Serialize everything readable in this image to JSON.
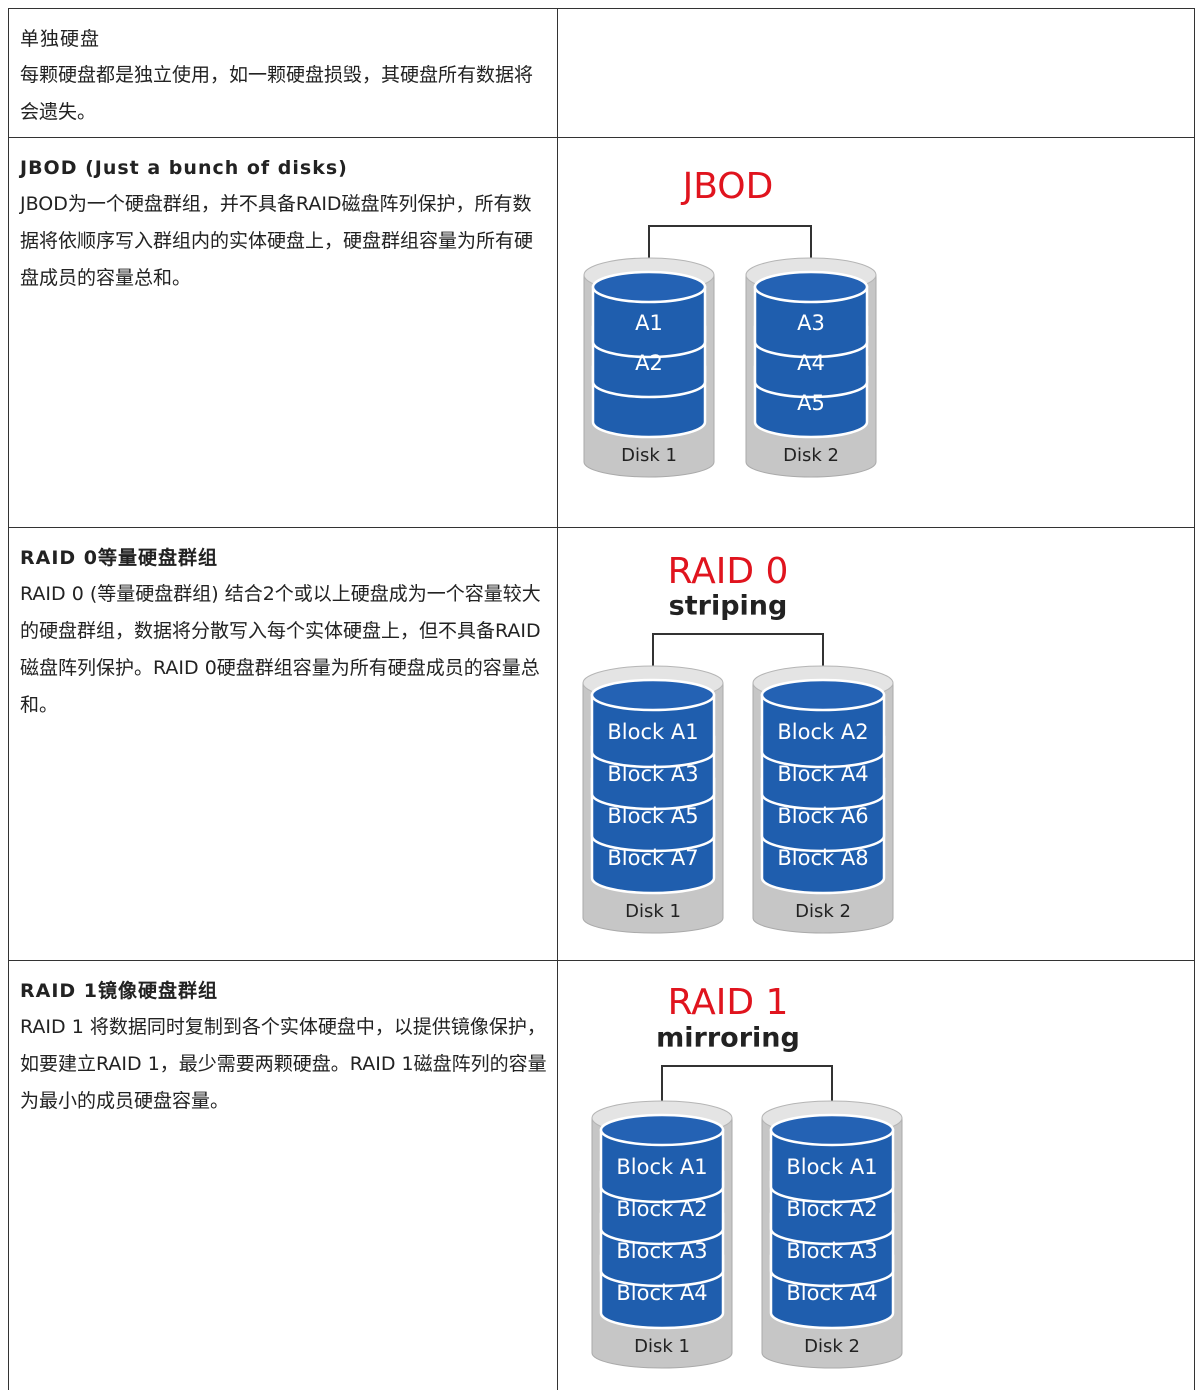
{
  "rows": [
    {
      "title": "单独硬盘",
      "description": "每颗硬盘都是独立使用，如一颗硬盘损毁，其硬盘所有数据将会遗失。"
    },
    {
      "title": "JBOD (Just a bunch of disks)",
      "description": "JBOD为一个硬盘群组，并不具备RAID磁盘阵列保护，所有数据将依顺序写入群组内的实体硬盘上，硬盘群组容量为所有硬盘成员的容量总和。",
      "diagram": {
        "title": "JBOD",
        "disks": [
          {
            "label": "Disk 1",
            "blocks": [
              "A1",
              "A2"
            ]
          },
          {
            "label": "Disk 2",
            "blocks": [
              "A3",
              "A4",
              "A5"
            ]
          }
        ]
      }
    },
    {
      "title": "RAID 0等量硬盘群组",
      "description": "RAID 0 (等量硬盘群组) 结合2个或以上硬盘成为一个容量较大的硬盘群组，数据将分散写入每个实体硬盘上，但不具备RAID磁盘阵列保护。RAID 0硬盘群组容量为所有硬盘成员的容量总和。",
      "diagram": {
        "title": "RAID 0",
        "subtitle": "striping",
        "disks": [
          {
            "label": "Disk 1",
            "blocks": [
              "Block A1",
              "Block A3",
              "Block A5",
              "Block A7"
            ]
          },
          {
            "label": "Disk 2",
            "blocks": [
              "Block A2",
              "Block A4",
              "Block A6",
              "Block A8"
            ]
          }
        ]
      }
    },
    {
      "title": "RAID 1镜像硬盘群组",
      "description": "RAID 1 将数据同时复制到各个实体硬盘中，以提供镜像保护，如要建立RAID 1，最少需要两颗硬盘。RAID 1磁盘阵列的容量为最小的成员硬盘容量。",
      "diagram": {
        "title": "RAID 1",
        "subtitle": "mirroring",
        "disks": [
          {
            "label": "Disk 1",
            "blocks": [
              "Block A1",
              "Block A2",
              "Block A3",
              "Block A4"
            ]
          },
          {
            "label": "Disk 2",
            "blocks": [
              "Block A1",
              "Block A2",
              "Block A3",
              "Block A4"
            ]
          }
        ]
      }
    }
  ]
}
